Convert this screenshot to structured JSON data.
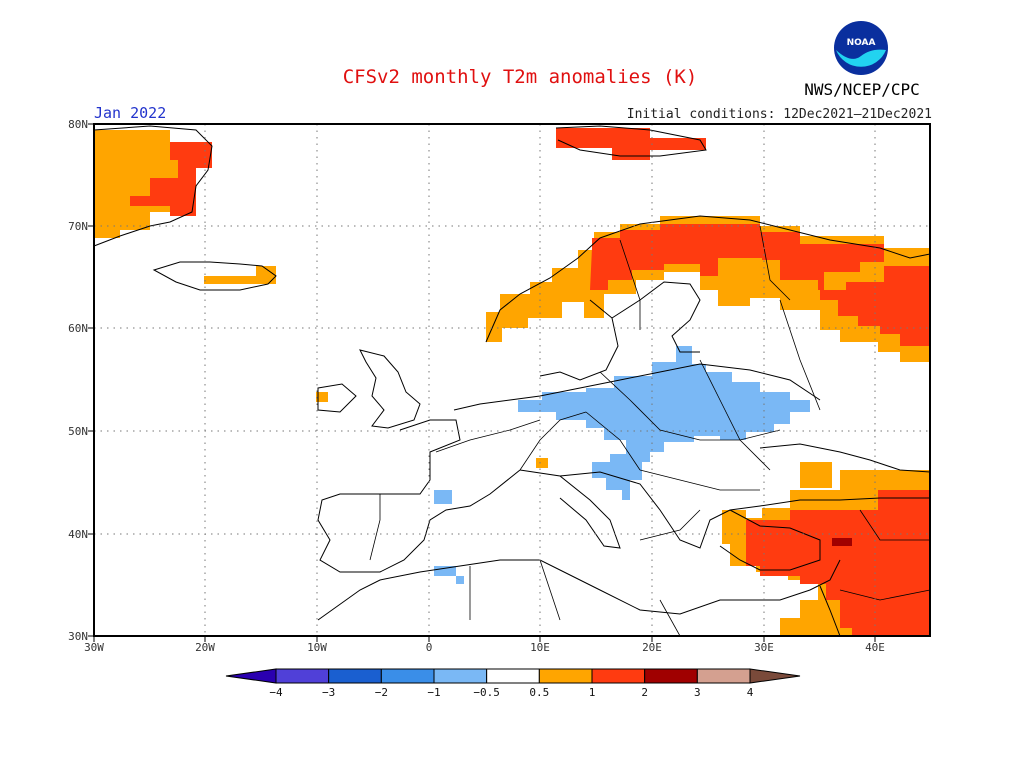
{
  "title": "CFSv2 monthly T2m anomalies (K)",
  "agency": "NWS/NCEP/CPC",
  "logo_text": "NOAA",
  "forecast_period": "Jan 2022",
  "initial_conditions": "Initial conditions: 12Dec2021–21Dec2021",
  "map": {
    "lon_range": [
      -30,
      45
    ],
    "lat_range": [
      30,
      80
    ],
    "lat_labels": [
      "80N",
      "70N",
      "60N",
      "50N",
      "40N",
      "30N"
    ],
    "lon_labels": [
      "30W",
      "20W",
      "10W",
      "0",
      "10E",
      "20E",
      "30E",
      "40E"
    ]
  },
  "colorbar": {
    "labels": [
      "−4",
      "−3",
      "−2",
      "−1",
      "−0.5",
      "0.5",
      "1",
      "2",
      "3",
      "4"
    ],
    "colors": [
      "#2a00b0",
      "#5040d8",
      "#1a5fd0",
      "#3a8ee8",
      "#7ab8f5",
      "#ffffff",
      "#ffa500",
      "#ff3b10",
      "#a00000",
      "#d4a090",
      "#7a4a3a"
    ]
  },
  "anomaly_colors": {
    "cold_light": "#7ab8f5",
    "warm_orange": "#ffa500",
    "warm_red": "#ff3b10",
    "hot_darkred": "#a00000"
  }
}
